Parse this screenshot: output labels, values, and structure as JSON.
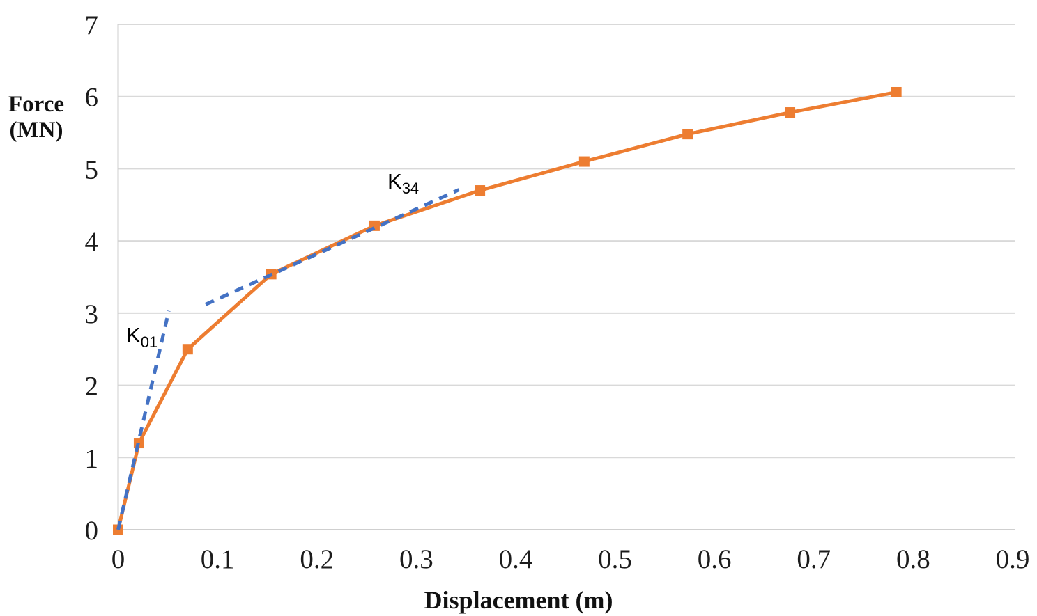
{
  "colors": {
    "series_orange": "#ED7D31",
    "annotation_blue": "#4472C4",
    "gridline": "#D9D9D9",
    "axis_line": "#CFCFCF",
    "text": "#1C1C1C"
  },
  "chart_data": {
    "type": "line",
    "title": "",
    "xlabel": "Displacement (m)",
    "ylabel": "Force (MN)",
    "ylabel_lines": [
      "Force",
      "(MN)"
    ],
    "xlim": [
      0,
      0.9
    ],
    "ylim": [
      0,
      7
    ],
    "x_tick_labels": [
      "0",
      "0.1",
      "0.2",
      "0.3",
      "0.4",
      "0.5",
      "0.6",
      "0.7",
      "0.8",
      "0.9"
    ],
    "x_tick_values": [
      0,
      0.1,
      0.2,
      0.3,
      0.4,
      0.5,
      0.6,
      0.7,
      0.8,
      0.9
    ],
    "y_tick_labels": [
      "0",
      "1",
      "2",
      "3",
      "4",
      "5",
      "6",
      "7"
    ],
    "y_tick_values": [
      0,
      1,
      2,
      3,
      4,
      5,
      6,
      7
    ],
    "grid": "horizontal",
    "legend": "none",
    "series": [
      {
        "name": "force-displacement-curve",
        "color": "#ED7D31",
        "line_style": "solid",
        "marker": "square",
        "x": [
          0,
          0.021,
          0.07,
          0.154,
          0.258,
          0.364,
          0.469,
          0.573,
          0.676,
          0.783
        ],
        "y": [
          0,
          1.2,
          2.5,
          3.54,
          4.21,
          4.7,
          5.1,
          5.48,
          5.78,
          6.06
        ]
      }
    ],
    "annotations": [
      {
        "name": "K01-initial-stiffness",
        "label_main": "K",
        "label_sub": "01",
        "color": "#4472C4",
        "line_style": "dashed",
        "x": [
          0,
          0.051
        ],
        "y": [
          0,
          3.03
        ]
      },
      {
        "name": "K34-secant-stiffness",
        "label_main": "K",
        "label_sub": "34",
        "color": "#4472C4",
        "line_style": "dashed",
        "x": [
          0.088,
          0.343
        ],
        "y": [
          3.12,
          4.71
        ]
      }
    ]
  }
}
